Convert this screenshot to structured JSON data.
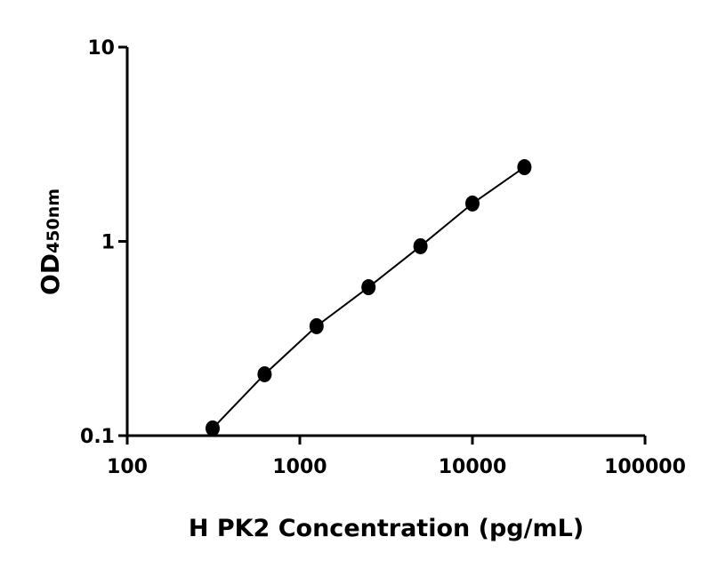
{
  "chart_data": {
    "type": "scatter",
    "x_label": "H PK2 Concentration (pg/mL)",
    "y_label": "OD",
    "y_label_subscript": "450nm",
    "x_log": true,
    "y_log": true,
    "xlim": [
      100,
      100000
    ],
    "xticks": [
      100,
      1000,
      10000,
      100000
    ],
    "ylim": [
      0.1,
      10
    ],
    "yticks": [
      0.1,
      1,
      10
    ],
    "series": [
      {
        "color": "#000000",
        "x": [
          312.5,
          625,
          1250,
          2500,
          5000,
          10000,
          20000
        ],
        "values": [
          0.109,
          0.207,
          0.366,
          0.581,
          0.944,
          1.567,
          2.41
        ]
      }
    ]
  }
}
